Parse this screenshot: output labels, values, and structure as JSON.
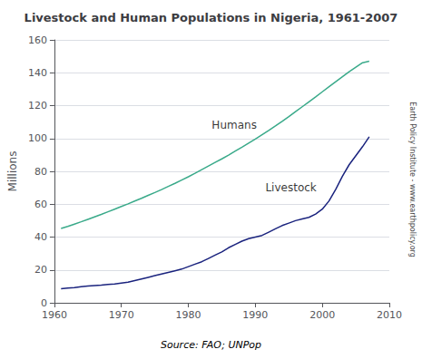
{
  "chart_data": {
    "type": "line",
    "title": "Livestock and Human Populations in Nigeria, 1961-2007",
    "y_label": "Millions",
    "source": "Source: FAO; UNPop",
    "watermark": "Earth Policy Institute - www.earthpolicy.org",
    "x": [
      1961,
      1962,
      1963,
      1964,
      1965,
      1966,
      1967,
      1968,
      1969,
      1970,
      1971,
      1972,
      1973,
      1974,
      1975,
      1976,
      1977,
      1978,
      1979,
      1980,
      1981,
      1982,
      1983,
      1984,
      1985,
      1986,
      1987,
      1988,
      1989,
      1990,
      1991,
      1992,
      1993,
      1994,
      1995,
      1996,
      1997,
      1998,
      1999,
      2000,
      2001,
      2002,
      2003,
      2004,
      2005,
      2006,
      2007
    ],
    "series": [
      {
        "color": "#3aaa8a",
        "values": [
          45.2,
          46.5,
          47.9,
          49.3,
          50.8,
          52.3,
          53.8,
          55.4,
          57.0,
          58.6,
          60.2,
          61.9,
          63.6,
          65.4,
          67.1,
          68.9,
          70.8,
          72.7,
          74.7,
          76.7,
          78.8,
          81.0,
          83.2,
          85.4,
          87.6,
          89.9,
          92.3,
          94.7,
          97.2,
          99.7,
          102.3,
          104.9,
          107.6,
          110.4,
          113.3,
          116.3,
          119.3,
          122.3,
          125.3,
          128.4,
          131.5,
          134.6,
          137.6,
          140.6,
          143.4,
          146.1,
          147.0
        ]
      },
      {
        "color": "#1a237e",
        "values": [
          8.5,
          9.0,
          9.2,
          9.8,
          10.2,
          10.5,
          10.8,
          11.2,
          11.5,
          12.0,
          12.5,
          13.5,
          14.5,
          15.5,
          16.5,
          17.5,
          18.5,
          19.5,
          20.5,
          22.0,
          23.5,
          25.0,
          27.0,
          29.0,
          31.0,
          33.5,
          35.5,
          37.5,
          39.0,
          40.0,
          41.0,
          43.0,
          45.0,
          47.0,
          48.5,
          50.0,
          51.0,
          52.0,
          54.0,
          57.0,
          62.0,
          69.0,
          77.0,
          84.0,
          89.5,
          95.0,
          101.0
        ]
      }
    ],
    "annotations": [
      {
        "text": "Humans",
        "x": 1983.5,
        "y": 105
      },
      {
        "text": "Livestock",
        "x": 1991.5,
        "y": 67
      }
    ],
    "xlim": [
      1960,
      2010
    ],
    "ylim": [
      0,
      160
    ],
    "xticks": [
      1960,
      1970,
      1980,
      1990,
      2000,
      2010
    ],
    "yticks": [
      0,
      20,
      40,
      60,
      80,
      100,
      120,
      140,
      160
    ],
    "grid": true
  }
}
